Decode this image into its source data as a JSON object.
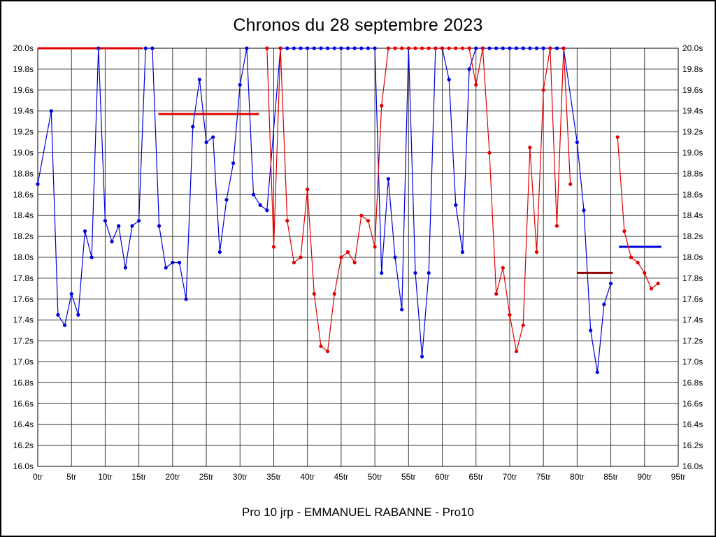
{
  "page": {
    "title": "Chronos du 28 septembre 2023",
    "footer": "Pro 10 jrp - EMMANUEL RABANNE - Pro10"
  },
  "chart_data": {
    "type": "line",
    "title": "Chronos du 28 septembre 2023",
    "footer": "Pro 10 jrp - EMMANUEL RABANNE - Pro10",
    "grid": true,
    "legend": "none",
    "x_axis": {
      "min": 0,
      "max": 95,
      "tick_step": 5,
      "suffix": "tr"
    },
    "y_axis": {
      "min": 16.0,
      "max": 20.0,
      "tick_step": 0.2,
      "suffix": "s",
      "decimals": 1
    },
    "colors": {
      "blue": "#0000dd",
      "red": "#e10000",
      "red_dark": "#990000",
      "grid": "#3c3c3c",
      "frame": "#000000"
    },
    "point_radius": 2.6,
    "series": [
      {
        "name": "blue-series",
        "color_key": "blue",
        "runs": [
          [
            [
              0,
              18.7
            ],
            [
              2,
              19.4
            ],
            [
              3,
              17.45
            ],
            [
              4,
              17.35
            ],
            [
              5,
              17.65
            ],
            [
              6,
              17.45
            ],
            [
              7,
              18.25
            ],
            [
              8,
              18.0
            ],
            [
              9,
              20.0
            ],
            [
              10,
              18.35
            ],
            [
              11,
              18.15
            ],
            [
              12,
              18.3
            ],
            [
              13,
              17.9
            ],
            [
              14,
              18.3
            ],
            [
              15,
              18.35
            ],
            [
              16,
              20.0
            ],
            [
              17,
              20.0
            ],
            [
              18,
              18.3
            ],
            [
              19,
              17.9
            ],
            [
              20,
              17.95
            ],
            [
              21,
              17.95
            ],
            [
              22,
              17.6
            ],
            [
              23,
              19.25
            ],
            [
              24,
              19.7
            ],
            [
              25,
              19.1
            ],
            [
              26,
              19.15
            ],
            [
              27,
              18.05
            ],
            [
              28,
              18.55
            ],
            [
              29,
              18.9
            ],
            [
              30,
              19.65
            ],
            [
              31,
              20.0
            ],
            [
              32,
              18.6
            ],
            [
              33,
              18.5
            ],
            [
              34,
              18.45
            ],
            [
              36,
              20.0
            ],
            [
              37,
              20.0
            ],
            [
              38,
              20.0
            ],
            [
              39,
              20.0
            ],
            [
              40,
              20.0
            ],
            [
              41,
              20.0
            ],
            [
              42,
              20.0
            ],
            [
              43,
              20.0
            ],
            [
              44,
              20.0
            ],
            [
              45,
              20.0
            ],
            [
              46,
              20.0
            ],
            [
              47,
              20.0
            ],
            [
              48,
              20.0
            ],
            [
              49,
              20.0
            ],
            [
              50,
              20.0
            ],
            [
              51,
              17.85
            ],
            [
              52,
              18.75
            ],
            [
              53,
              18.0
            ],
            [
              54,
              17.5
            ],
            [
              55,
              20.0
            ],
            [
              56,
              17.85
            ],
            [
              57,
              17.05
            ],
            [
              58,
              17.85
            ],
            [
              59,
              20.0
            ],
            [
              60,
              20.0
            ],
            [
              61,
              19.7
            ],
            [
              62,
              18.5
            ],
            [
              63,
              18.05
            ],
            [
              64,
              19.8
            ],
            [
              65,
              20.0
            ],
            [
              66,
              20.0
            ],
            [
              67,
              20.0
            ],
            [
              68,
              20.0
            ],
            [
              69,
              20.0
            ],
            [
              70,
              20.0
            ],
            [
              71,
              20.0
            ],
            [
              72,
              20.0
            ],
            [
              73,
              20.0
            ],
            [
              74,
              20.0
            ],
            [
              75,
              20.0
            ],
            [
              76,
              20.0
            ],
            [
              77,
              20.0
            ],
            [
              78,
              20.0
            ],
            [
              80,
              19.1
            ],
            [
              81,
              18.45
            ],
            [
              82,
              17.3
            ],
            [
              83,
              16.9
            ],
            [
              84,
              17.55
            ],
            [
              85,
              17.75
            ]
          ]
        ]
      },
      {
        "name": "red-series",
        "color_key": "red",
        "runs": [
          [
            [
              34,
              20.0
            ],
            [
              35,
              18.1
            ],
            [
              36,
              20.0
            ],
            [
              37,
              18.35
            ],
            [
              38,
              17.95
            ],
            [
              39,
              18.0
            ],
            [
              40,
              18.65
            ],
            [
              41,
              17.65
            ],
            [
              42,
              17.15
            ],
            [
              43,
              17.1
            ],
            [
              44,
              17.65
            ],
            [
              45,
              18.0
            ],
            [
              46,
              18.05
            ],
            [
              47,
              17.95
            ],
            [
              48,
              18.4
            ],
            [
              49,
              18.35
            ],
            [
              50,
              18.1
            ],
            [
              51,
              19.45
            ],
            [
              52,
              20.0
            ],
            [
              53,
              20.0
            ],
            [
              54,
              20.0
            ],
            [
              55,
              20.0
            ],
            [
              56,
              20.0
            ],
            [
              57,
              20.0
            ],
            [
              58,
              20.0
            ],
            [
              59,
              20.0
            ],
            [
              60,
              20.0
            ],
            [
              61,
              20.0
            ],
            [
              62,
              20.0
            ],
            [
              63,
              20.0
            ],
            [
              64,
              20.0
            ],
            [
              65,
              19.65
            ],
            [
              66,
              20.0
            ],
            [
              67,
              19.0
            ],
            [
              68,
              17.65
            ],
            [
              69,
              17.9
            ],
            [
              70,
              17.45
            ],
            [
              71,
              17.1
            ],
            [
              72,
              17.35
            ],
            [
              73,
              19.05
            ],
            [
              74,
              18.05
            ],
            [
              75,
              19.6
            ],
            [
              76,
              20.0
            ],
            [
              77,
              18.3
            ],
            [
              78,
              20.0
            ],
            [
              79,
              18.7
            ]
          ],
          [
            [
              86,
              19.15
            ],
            [
              87,
              18.25
            ],
            [
              88,
              18.0
            ],
            [
              89,
              17.95
            ],
            [
              90,
              17.85
            ],
            [
              91,
              17.7
            ],
            [
              92,
              17.75
            ]
          ]
        ]
      }
    ],
    "segments": [
      {
        "name": "red-cap-line",
        "color_key": "red",
        "x1": 0,
        "x2": 15.5,
        "y": 20.0
      },
      {
        "name": "red-average-line",
        "color_key": "red",
        "x1": 17.9,
        "x2": 32.8,
        "y": 19.37
      },
      {
        "name": "red-average-line-2",
        "color_key": "red_dark",
        "x1": 80.0,
        "x2": 85.3,
        "y": 17.85
      },
      {
        "name": "blue-average-line",
        "color_key": "blue",
        "x1": 86.2,
        "x2": 92.5,
        "y": 18.1
      }
    ]
  }
}
